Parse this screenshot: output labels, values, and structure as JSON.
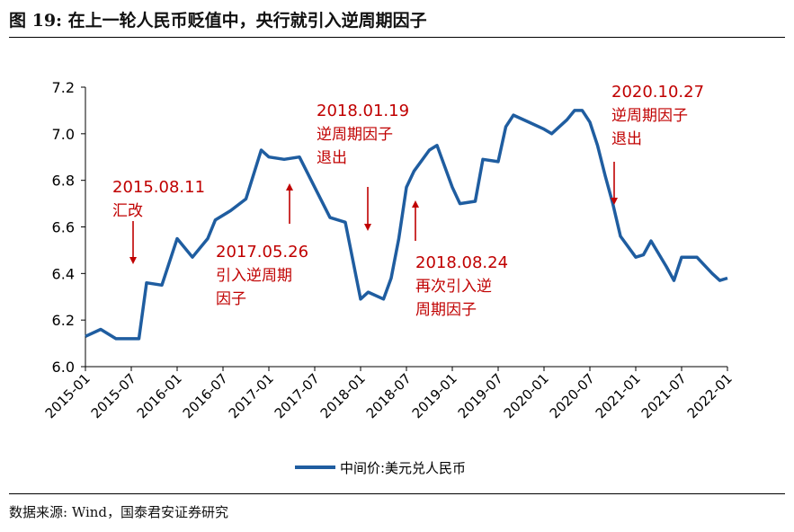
{
  "title": "图 19: 在上一轮人民币贬值中，央行就引入逆周期因子",
  "source": "数据来源: Wind，国泰君安证券研究",
  "chart_data": {
    "type": "line",
    "ylim": [
      6.0,
      7.2
    ],
    "yticks": [
      "6.0",
      "6.2",
      "6.4",
      "6.6",
      "6.8",
      "7.0",
      "7.2"
    ],
    "xlim": [
      "2015-01",
      "2022-01"
    ],
    "xticks": [
      "2015-01",
      "2015-07",
      "2016-01",
      "2016-07",
      "2017-01",
      "2017-07",
      "2018-01",
      "2018-07",
      "2019-01",
      "2019-07",
      "2020-01",
      "2020-07",
      "2021-01",
      "2021-07",
      "2022-01"
    ],
    "grid": false,
    "legend_position": "bottom",
    "colors": {
      "series": "#1F5DA0",
      "annotation": "#C00000"
    },
    "series": [
      {
        "name": "中间价:美元兑人民币",
        "x": [
          "2015-01",
          "2015-03",
          "2015-05",
          "2015-07",
          "2015-08",
          "2015-09",
          "2015-11",
          "2016-01",
          "2016-03",
          "2016-05",
          "2016-06",
          "2016-08",
          "2016-10",
          "2016-12",
          "2017-01",
          "2017-03",
          "2017-05",
          "2017-07",
          "2017-09",
          "2017-11",
          "2018-01",
          "2018-02",
          "2018-04",
          "2018-05",
          "2018-06",
          "2018-07",
          "2018-08",
          "2018-10",
          "2018-11",
          "2019-01",
          "2019-02",
          "2019-04",
          "2019-05",
          "2019-07",
          "2019-08",
          "2019-09",
          "2019-11",
          "2020-01",
          "2020-02",
          "2020-04",
          "2020-05",
          "2020-06",
          "2020-07",
          "2020-08",
          "2020-09",
          "2020-10",
          "2020-11",
          "2021-01",
          "2021-02",
          "2021-03",
          "2021-05",
          "2021-06",
          "2021-07",
          "2021-09",
          "2021-11",
          "2021-12",
          "2022-01"
        ],
        "values": [
          6.13,
          6.16,
          6.12,
          6.12,
          6.12,
          6.36,
          6.35,
          6.55,
          6.47,
          6.55,
          6.63,
          6.67,
          6.72,
          6.93,
          6.9,
          6.89,
          6.9,
          6.77,
          6.64,
          6.62,
          6.29,
          6.32,
          6.29,
          6.38,
          6.55,
          6.77,
          6.84,
          6.93,
          6.95,
          6.77,
          6.7,
          6.71,
          6.89,
          6.88,
          7.03,
          7.08,
          7.05,
          7.02,
          7.0,
          7.06,
          7.1,
          7.1,
          7.05,
          6.95,
          6.82,
          6.7,
          6.56,
          6.47,
          6.48,
          6.54,
          6.43,
          6.37,
          6.47,
          6.47,
          6.4,
          6.37,
          6.38
        ]
      }
    ],
    "annotations": [
      {
        "label": "2015.08.11",
        "sub": [
          "汇改"
        ],
        "date": "2015-08",
        "arrow": "down"
      },
      {
        "label": "2017.05.26",
        "sub": [
          "引入逆周期",
          "因子"
        ],
        "date": "2017-05",
        "arrow": "up"
      },
      {
        "label": "2018.01.19",
        "sub": [
          "逆周期因子",
          "退出"
        ],
        "date": "2018-01",
        "arrow": "down"
      },
      {
        "label": "2018.08.24",
        "sub": [
          "再次引入逆",
          "周期因子"
        ],
        "date": "2018-08",
        "arrow": "up"
      },
      {
        "label": "2020.10.27",
        "sub": [
          "逆周期因子",
          "退出"
        ],
        "date": "2020-10",
        "arrow": "down"
      }
    ]
  }
}
